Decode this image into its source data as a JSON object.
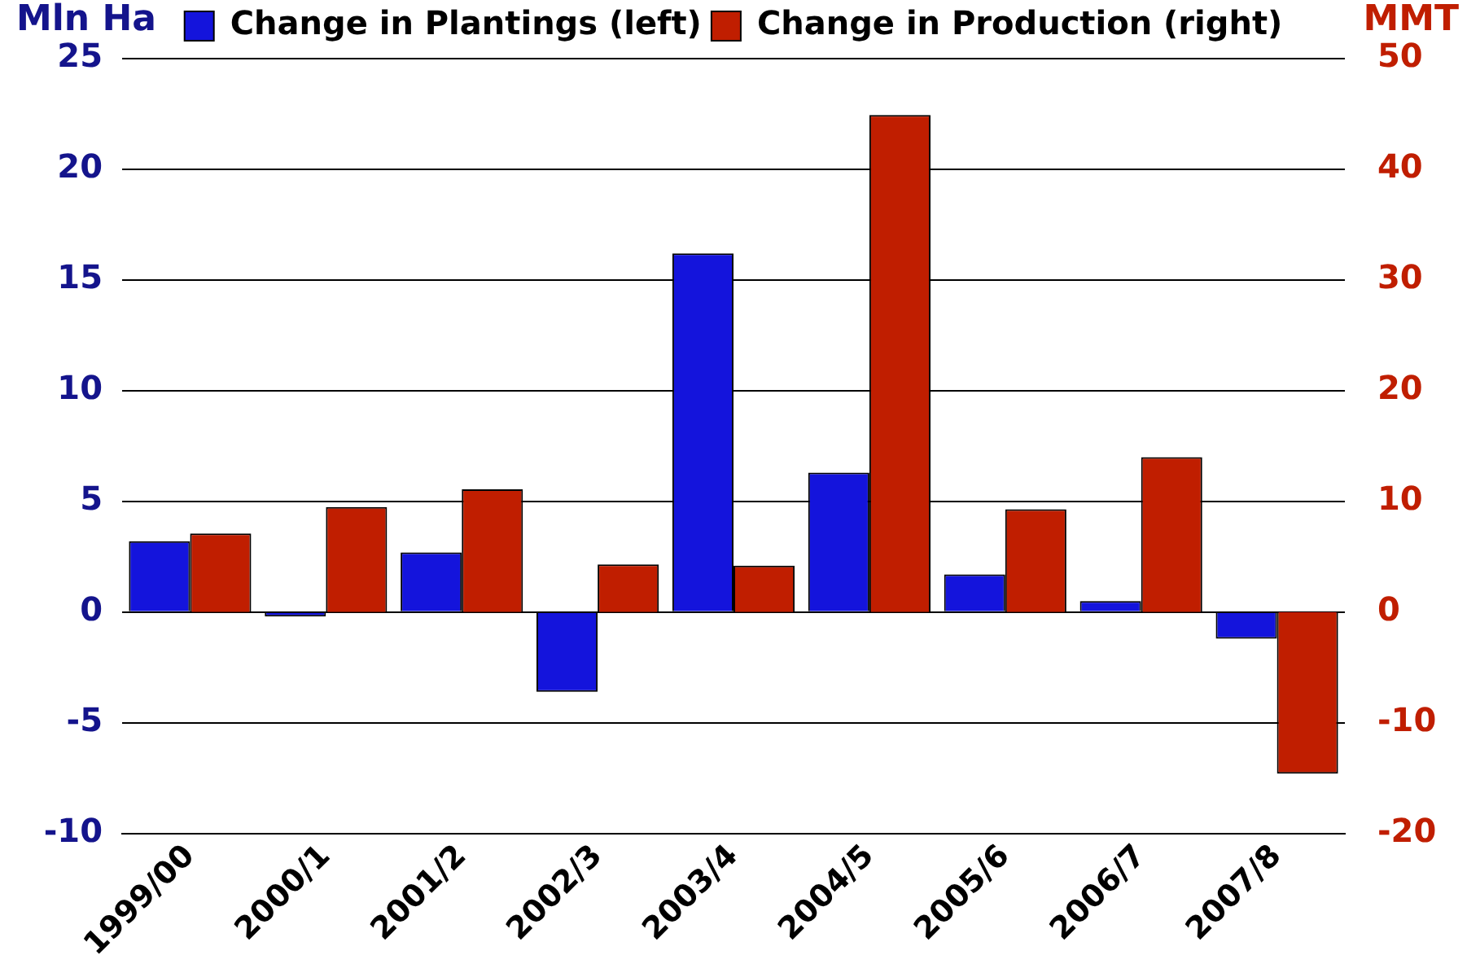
{
  "chart_data": {
    "type": "bar",
    "ylabel": "Mln Ha",
    "y2label": "MMT",
    "categories": [
      "1999/00",
      "2000/1",
      "2001/2",
      "2002/3",
      "2003/4",
      "2004/5",
      "2005/6",
      "2006/7",
      "2007/8"
    ],
    "series": [
      {
        "name": "Change in Plantings (left)",
        "color": "#1414dc",
        "values": [
          3.2,
          -0.2,
          2.7,
          -3.6,
          16.2,
          6.3,
          1.7,
          0.5,
          -1.2
        ]
      },
      {
        "name": "Change in Production (right)",
        "color": "#c01e00",
        "axis": "y2",
        "values": [
          7.1,
          9.5,
          11.1,
          4.3,
          4.2,
          44.9,
          9.3,
          14.0,
          -14.6
        ]
      }
    ],
    "ylim": [
      -10,
      25
    ],
    "yticks": [
      -10,
      -5,
      0,
      5,
      10,
      15,
      20,
      25
    ],
    "y2lim": [
      -20,
      50
    ],
    "y2ticks": [
      -20,
      -10,
      0,
      10,
      20,
      30,
      40,
      50
    ],
    "grid": "y",
    "legend": "top"
  }
}
